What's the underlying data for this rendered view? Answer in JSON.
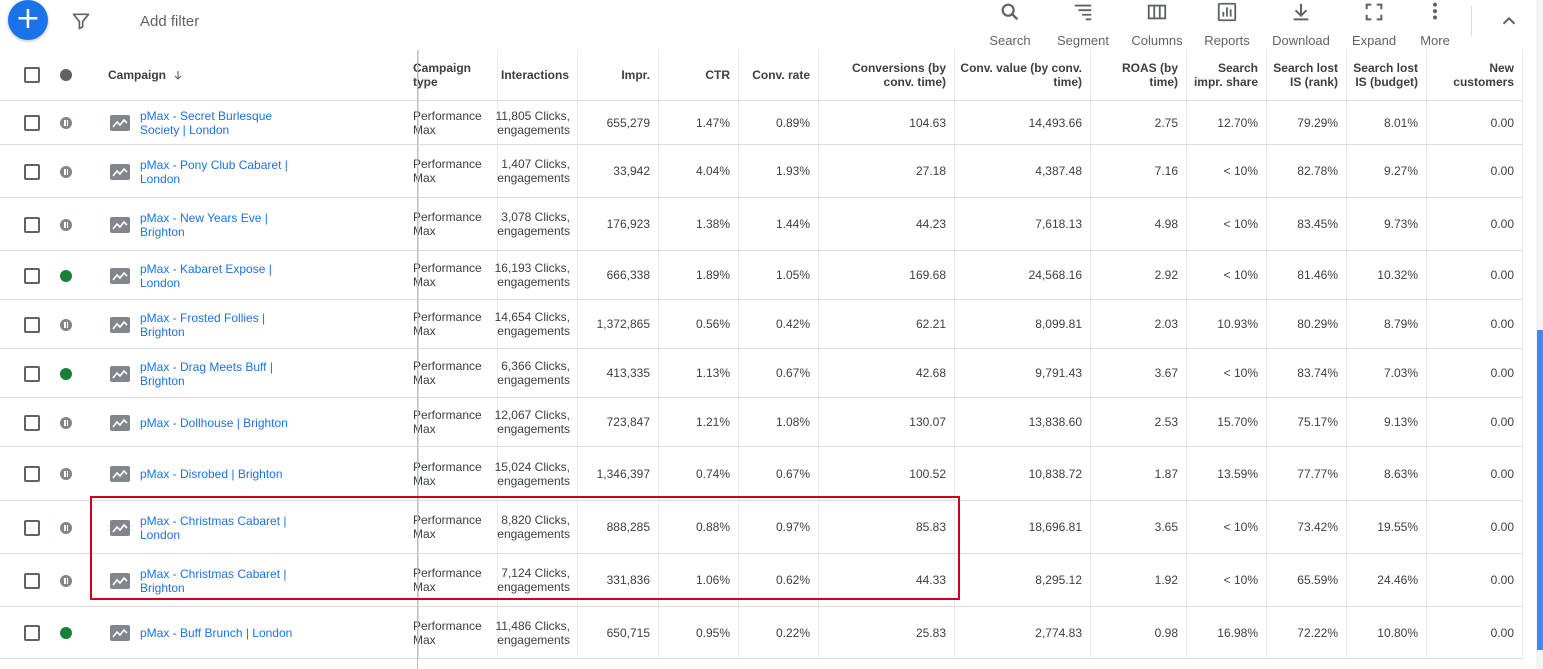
{
  "toolbar": {
    "add_filter": "Add filter",
    "tools": [
      {
        "label": "Search",
        "icon": "search-icon"
      },
      {
        "label": "Segment",
        "icon": "segment-icon"
      },
      {
        "label": "Columns",
        "icon": "columns-icon"
      },
      {
        "label": "Reports",
        "icon": "reports-icon"
      },
      {
        "label": "Download",
        "icon": "download-icon"
      },
      {
        "label": "Expand",
        "icon": "expand-icon"
      },
      {
        "label": "More",
        "icon": "more-vert-icon"
      }
    ]
  },
  "table": {
    "headers": {
      "campaign": "Campaign",
      "campaign_type": "Campaign type",
      "interactions": "Interactions",
      "impr": "Impr.",
      "ctr": "CTR",
      "conv_rate": "Conv. rate",
      "conversions": "Conversions (by conv. time)",
      "conv_value": "Conv. value (by conv. time)",
      "roas": "ROAS (by time)",
      "search_impr_share": "Search impr. share",
      "lost_rank": "Search lost IS (rank)",
      "lost_budget": "Search lost IS (budget)",
      "new_customers": "New customers"
    },
    "rows": [
      {
        "status": "paused",
        "name": "pMax - Secret Burlesque Society | London",
        "type": "Performance Max",
        "interactions": "11,805 Clicks, engagements",
        "impr": "655,279",
        "ctr": "1.47%",
        "conv_rate": "0.89%",
        "conversions": "104.63",
        "conv_value": "14,493.66",
        "roas": "2.75",
        "search_impr_share": "12.70%",
        "lost_rank": "79.29%",
        "lost_budget": "8.01%",
        "new_customers": "0.00"
      },
      {
        "status": "paused",
        "name": "pMax - Pony Club Cabaret | London",
        "type": "Performance Max",
        "interactions": "1,407 Clicks, engagements",
        "impr": "33,942",
        "ctr": "4.04%",
        "conv_rate": "1.93%",
        "conversions": "27.18",
        "conv_value": "4,387.48",
        "roas": "7.16",
        "search_impr_share": "< 10%",
        "lost_rank": "82.78%",
        "lost_budget": "9.27%",
        "new_customers": "0.00"
      },
      {
        "status": "paused",
        "name": "pMax - New Years Eve | Brighton",
        "type": "Performance Max",
        "interactions": "3,078 Clicks, engagements",
        "impr": "176,923",
        "ctr": "1.38%",
        "conv_rate": "1.44%",
        "conversions": "44.23",
        "conv_value": "7,618.13",
        "roas": "4.98",
        "search_impr_share": "< 10%",
        "lost_rank": "83.45%",
        "lost_budget": "9.73%",
        "new_customers": "0.00"
      },
      {
        "status": "active",
        "name": "pMax - Kabaret Expose | London",
        "type": "Performance Max",
        "interactions": "16,193 Clicks, engagements",
        "impr": "666,338",
        "ctr": "1.89%",
        "conv_rate": "1.05%",
        "conversions": "169.68",
        "conv_value": "24,568.16",
        "roas": "2.92",
        "search_impr_share": "< 10%",
        "lost_rank": "81.46%",
        "lost_budget": "10.32%",
        "new_customers": "0.00"
      },
      {
        "status": "paused",
        "name": "pMax - Frosted Follies | Brighton",
        "type": "Performance Max",
        "interactions": "14,654 Clicks, engagements",
        "impr": "1,372,865",
        "ctr": "0.56%",
        "conv_rate": "0.42%",
        "conversions": "62.21",
        "conv_value": "8,099.81",
        "roas": "2.03",
        "search_impr_share": "10.93%",
        "lost_rank": "80.29%",
        "lost_budget": "8.79%",
        "new_customers": "0.00"
      },
      {
        "status": "active",
        "name": "pMax - Drag Meets Buff | Brighton",
        "type": "Performance Max",
        "interactions": "6,366 Clicks, engagements",
        "impr": "413,335",
        "ctr": "1.13%",
        "conv_rate": "0.67%",
        "conversions": "42.68",
        "conv_value": "9,791.43",
        "roas": "3.67",
        "search_impr_share": "< 10%",
        "lost_rank": "83.74%",
        "lost_budget": "7.03%",
        "new_customers": "0.00"
      },
      {
        "status": "paused",
        "name": "pMax - Dollhouse | Brighton",
        "type": "Performance Max",
        "interactions": "12,067 Clicks, engagements",
        "impr": "723,847",
        "ctr": "1.21%",
        "conv_rate": "1.08%",
        "conversions": "130.07",
        "conv_value": "13,838.60",
        "roas": "2.53",
        "search_impr_share": "15.70%",
        "lost_rank": "75.17%",
        "lost_budget": "9.13%",
        "new_customers": "0.00"
      },
      {
        "status": "paused",
        "name": "pMax - Disrobed | Brighton",
        "type": "Performance Max",
        "interactions": "15,024 Clicks, engagements",
        "impr": "1,346,397",
        "ctr": "0.74%",
        "conv_rate": "0.67%",
        "conversions": "100.52",
        "conv_value": "10,838.72",
        "roas": "1.87",
        "search_impr_share": "13.59%",
        "lost_rank": "77.77%",
        "lost_budget": "8.63%",
        "new_customers": "0.00"
      },
      {
        "status": "paused",
        "name": "pMax - Christmas Cabaret | London",
        "type": "Performance Max",
        "interactions": "8,820 Clicks, engagements",
        "impr": "888,285",
        "ctr": "0.88%",
        "conv_rate": "0.97%",
        "conversions": "85.83",
        "conv_value": "18,696.81",
        "roas": "3.65",
        "search_impr_share": "< 10%",
        "lost_rank": "73.42%",
        "lost_budget": "19.55%",
        "new_customers": "0.00"
      },
      {
        "status": "paused",
        "name": "pMax - Christmas Cabaret | Brighton",
        "type": "Performance Max",
        "interactions": "7,124 Clicks, engagements",
        "impr": "331,836",
        "ctr": "1.06%",
        "conv_rate": "0.62%",
        "conversions": "44.33",
        "conv_value": "8,295.12",
        "roas": "1.92",
        "search_impr_share": "< 10%",
        "lost_rank": "65.59%",
        "lost_budget": "24.46%",
        "new_customers": "0.00"
      },
      {
        "status": "active",
        "name": "pMax - Buff Brunch | London",
        "type": "Performance Max",
        "interactions": "11,486 Clicks, engagements",
        "impr": "650,715",
        "ctr": "0.95%",
        "conv_rate": "0.22%",
        "conversions": "25.83",
        "conv_value": "2,774.83",
        "roas": "0.98",
        "search_impr_share": "16.98%",
        "lost_rank": "72.22%",
        "lost_budget": "10.80%",
        "new_customers": "0.00"
      }
    ]
  },
  "colors": {
    "link": "#1a73e8",
    "active_status": "#188038",
    "paused_status": "#80868b",
    "highlight_border": "#d0021b",
    "fab": "#1a73e8"
  }
}
